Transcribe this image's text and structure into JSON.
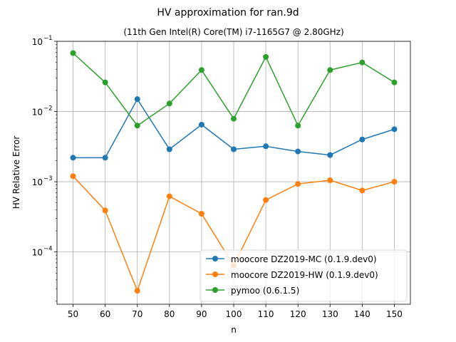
{
  "chart_data": {
    "type": "line",
    "title": "HV approximation for ran.9d",
    "subtitle": "(11th Gen Intel(R) Core(TM) i7-1165G7 @ 2.80GHz)",
    "xlabel": "n",
    "ylabel": "HV Relative Error",
    "yscale": "log",
    "xlim": [
      45,
      155
    ],
    "ylim": [
      1.8e-05,
      0.1
    ],
    "x": [
      50,
      60,
      70,
      80,
      90,
      100,
      110,
      120,
      130,
      140,
      150
    ],
    "x_ticks": [
      50,
      60,
      70,
      80,
      90,
      100,
      110,
      120,
      130,
      140,
      150
    ],
    "y_ticks": [
      {
        "value": 0.0001,
        "mantissa": "10",
        "exponent": "−4"
      },
      {
        "value": 0.001,
        "mantissa": "10",
        "exponent": "−3"
      },
      {
        "value": 0.01,
        "mantissa": "10",
        "exponent": "−2"
      },
      {
        "value": 0.1,
        "mantissa": "10",
        "exponent": "−1"
      }
    ],
    "grid": true,
    "legend_position": "lower-right",
    "series": [
      {
        "name": "moocore DZ2019-MC (0.1.9.dev0)",
        "color": "#1f77b4",
        "values": [
          0.0022,
          0.0022,
          0.015,
          0.0029,
          0.0065,
          0.0029,
          0.0032,
          0.0027,
          0.0024,
          0.004,
          0.0056
        ]
      },
      {
        "name": "moocore DZ2019-HW (0.1.9.dev0)",
        "color": "#ff7f0e",
        "values": [
          0.0012,
          0.00039,
          2.8e-05,
          0.00062,
          0.00035,
          6.4e-05,
          0.00055,
          0.00093,
          0.00105,
          0.00075,
          0.001
        ]
      },
      {
        "name": "pymoo (0.6.1.5)",
        "color": "#2ca02c",
        "values": [
          0.068,
          0.026,
          0.0063,
          0.013,
          0.039,
          0.0079,
          0.06,
          0.0063,
          0.039,
          0.05,
          0.026
        ]
      }
    ]
  }
}
